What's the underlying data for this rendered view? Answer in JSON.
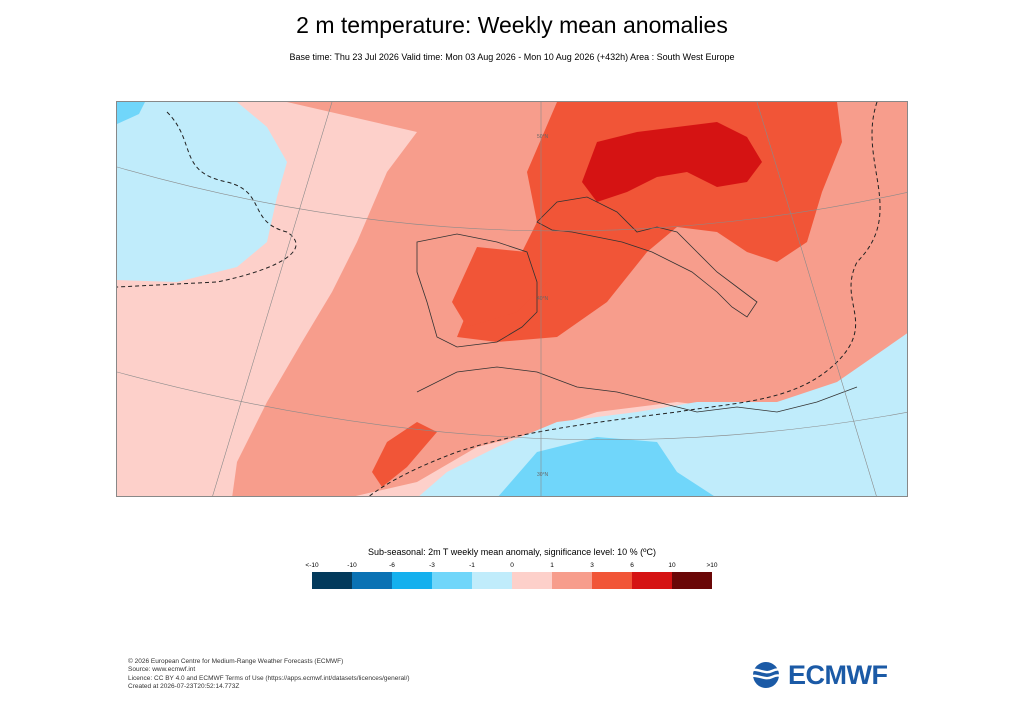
{
  "title": "2 m temperature: Weekly mean anomalies",
  "subtitle": "Base time: Thu 23 Jul 2026 Valid time: Mon 03 Aug 2026 - Mon 10 Aug 2026 (+432h) Area : South West Europe",
  "map": {
    "graticule_labels": [
      "50°N",
      "40°N",
      "30°N"
    ]
  },
  "legend": {
    "title": "Sub-seasonal: 2m T weekly mean anomaly, significance level: 10 % (ºC)",
    "ticks": [
      "<-10",
      "-10",
      "-6",
      "-3",
      "-1",
      "0",
      "1",
      "3",
      "6",
      "10",
      ">10"
    ],
    "colors": [
      "#033a5c",
      "#0a72b4",
      "#14b0ee",
      "#70d6fa",
      "#c0ecfb",
      "#fdd0ca",
      "#f79d8c",
      "#f15537",
      "#d51313",
      "#6a0707"
    ]
  },
  "footer": {
    "line1": "© 2026 European Centre for Medium-Range Weather Forecasts (ECMWF)",
    "line2": "Source: www.ecmwf.int",
    "line3": "Licence: CC BY 4.0 and ECMWF Terms of Use (https://apps.ecmwf.int/datasets/licences/general/)",
    "line4": "Created at 2026-07-23T20:52:14.773Z"
  },
  "logo": {
    "text": "ECMWF",
    "color": "#1b5aa6"
  }
}
